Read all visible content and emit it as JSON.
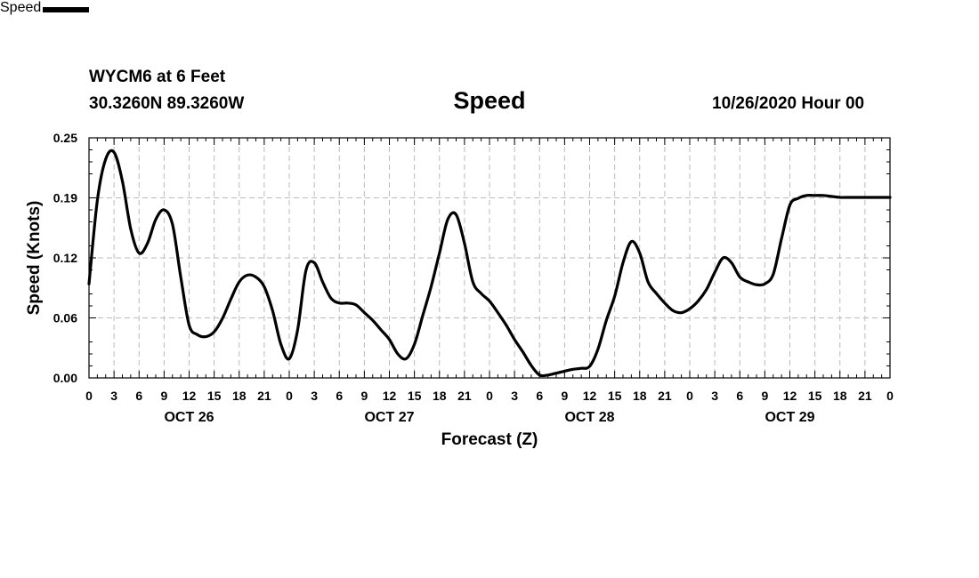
{
  "header": {
    "station": "WYCM6 at 6 Feet",
    "coords": "30.3260N 89.3260W",
    "title": "Speed",
    "datetime": "10/26/2020 Hour 00"
  },
  "legend": {
    "label": "Speed",
    "color": "#000000"
  },
  "chart_data": {
    "type": "line",
    "title": "Speed",
    "xlabel": "Forecast (Z)",
    "ylabel": "Speed (Knots)",
    "x_unit": "hours from 10/26/2020 00Z",
    "xlim": [
      0,
      96
    ],
    "ylim": [
      0,
      0.25
    ],
    "yticks": [
      "0.00",
      "0.06",
      "0.12",
      "0.19",
      "0.25"
    ],
    "ytick_values": [
      0,
      0.0625,
      0.125,
      0.1875,
      0.25
    ],
    "xticks": [
      "0",
      "3",
      "6",
      "9",
      "12",
      "15",
      "18",
      "21",
      "0",
      "3",
      "6",
      "9",
      "12",
      "15",
      "18",
      "21",
      "0",
      "3",
      "6",
      "9",
      "12",
      "15",
      "18",
      "21",
      "0",
      "3",
      "6",
      "9",
      "12",
      "15",
      "18",
      "21",
      "0"
    ],
    "day_labels": [
      "OCT 26",
      "OCT 27",
      "OCT 28",
      "OCT 29"
    ],
    "grid": true,
    "legend_position": "bottom-left",
    "series": [
      {
        "name": "Speed",
        "color": "#000000",
        "x": [
          0,
          1,
          2,
          3,
          4,
          5,
          6,
          7,
          8,
          9,
          10,
          11,
          12,
          13,
          14,
          15,
          16,
          17,
          18,
          19,
          20,
          21,
          22,
          23,
          24,
          25,
          26,
          27,
          28,
          29,
          30,
          31,
          32,
          33,
          34,
          35,
          36,
          37,
          38,
          39,
          40,
          41,
          42,
          43,
          44,
          45,
          46,
          47,
          48,
          49,
          50,
          51,
          52,
          53,
          54,
          55,
          56,
          57,
          58,
          59,
          60,
          61,
          62,
          63,
          64,
          65,
          66,
          67,
          68,
          69,
          70,
          71,
          72,
          73,
          74,
          75,
          76,
          77,
          78,
          79,
          80,
          81,
          82,
          83,
          84,
          85,
          86,
          87,
          88,
          89,
          90,
          91,
          92,
          93,
          94,
          95,
          96
        ],
        "y": [
          0.098,
          0.185,
          0.228,
          0.235,
          0.205,
          0.155,
          0.13,
          0.14,
          0.165,
          0.175,
          0.16,
          0.105,
          0.055,
          0.045,
          0.043,
          0.048,
          0.062,
          0.082,
          0.1,
          0.107,
          0.105,
          0.095,
          0.07,
          0.035,
          0.02,
          0.05,
          0.112,
          0.12,
          0.1,
          0.083,
          0.078,
          0.078,
          0.076,
          0.068,
          0.06,
          0.05,
          0.04,
          0.025,
          0.02,
          0.035,
          0.065,
          0.095,
          0.13,
          0.165,
          0.17,
          0.14,
          0.1,
          0.088,
          0.08,
          0.068,
          0.055,
          0.04,
          0.027,
          0.013,
          0.003,
          0.003,
          0.005,
          0.007,
          0.009,
          0.01,
          0.012,
          0.03,
          0.06,
          0.085,
          0.12,
          0.142,
          0.13,
          0.1,
          0.088,
          0.078,
          0.07,
          0.068,
          0.072,
          0.08,
          0.092,
          0.11,
          0.125,
          0.12,
          0.105,
          0.1,
          0.097,
          0.098,
          0.108,
          0.145,
          0.18,
          0.187,
          0.19,
          0.19,
          0.19,
          0.189,
          0.188,
          0.188,
          0.188,
          0.188,
          0.188,
          0.188,
          0.188
        ]
      }
    ]
  }
}
